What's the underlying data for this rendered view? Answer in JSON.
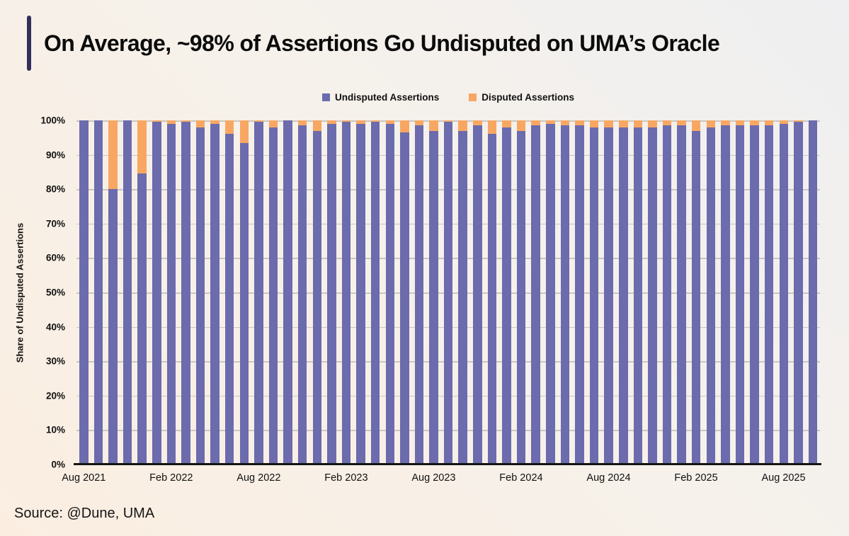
{
  "header": {
    "title": "On Average, ~98% of Assertions Go Undisputed on UMA’s Oracle"
  },
  "colors": {
    "accent_bar": "#322e5c",
    "undisputed": "#6b6bad",
    "disputed": "#f8a763",
    "gridline": "#cac7c2",
    "axis_line": "#141414",
    "background_top_right": "#efeff1",
    "background_bottom_left": "#fbeee1"
  },
  "legend": [
    {
      "label": "Undisputed Assertions",
      "color": "#6b6bad"
    },
    {
      "label": "Disputed Assertions",
      "color": "#f8a763"
    }
  ],
  "source": {
    "label": "Source: @Dune, UMA"
  },
  "chart_data": {
    "type": "bar",
    "stacked": true,
    "title": "On Average, ~98% of Assertions Go Undisputed on UMA’s Oracle",
    "xlabel": "",
    "ylabel": "Share of Undisputed Assertions",
    "ylim": [
      0,
      100
    ],
    "grid": true,
    "legend_position": "top-center",
    "yticks": [
      "0%",
      "10%",
      "20%",
      "30%",
      "40%",
      "50%",
      "60%",
      "70%",
      "80%",
      "90%",
      "100%"
    ],
    "xticks": [
      "Aug 2021",
      "Feb 2022",
      "Aug 2022",
      "Feb 2023",
      "Aug 2023",
      "Feb 2024",
      "Aug 2024",
      "Feb 2025",
      "Aug 2025"
    ],
    "xtick_every": 6,
    "categories": [
      "Aug 2021",
      "Sep 2021",
      "Oct 2021",
      "Nov 2021",
      "Dec 2021",
      "Jan 2022",
      "Feb 2022",
      "Mar 2022",
      "Apr 2022",
      "May 2022",
      "Jun 2022",
      "Jul 2022",
      "Aug 2022",
      "Sep 2022",
      "Oct 2022",
      "Nov 2022",
      "Dec 2022",
      "Jan 2023",
      "Feb 2023",
      "Mar 2023",
      "Apr 2023",
      "May 2023",
      "Jun 2023",
      "Jul 2023",
      "Aug 2023",
      "Sep 2023",
      "Oct 2023",
      "Nov 2023",
      "Dec 2023",
      "Jan 2024",
      "Feb 2024",
      "Mar 2024",
      "Apr 2024",
      "May 2024",
      "Jun 2024",
      "Jul 2024",
      "Aug 2024",
      "Sep 2024",
      "Oct 2024",
      "Nov 2024",
      "Dec 2024",
      "Jan 2025",
      "Feb 2025",
      "Mar 2025",
      "Apr 2025",
      "May 2025",
      "Jun 2025",
      "Jul 2025",
      "Aug 2025",
      "Sep 2025",
      "Oct 2025"
    ],
    "series": [
      {
        "name": "Undisputed Assertions",
        "color": "#6b6bad",
        "values": [
          100,
          100,
          80,
          100,
          84.5,
          99.5,
          99,
          99.5,
          98,
          99,
          96,
          93.5,
          99.5,
          98,
          100,
          98.5,
          97,
          99,
          99.5,
          99,
          99.5,
          99,
          96.5,
          98.5,
          97,
          99.5,
          97,
          98.5,
          96,
          98,
          97,
          98.5,
          99,
          98.5,
          98.5,
          98,
          98,
          98,
          98,
          98,
          98.5,
          98.5,
          97,
          98,
          98.5,
          98.5,
          98.5,
          98.5,
          99,
          99.5,
          100
        ]
      },
      {
        "name": "Disputed Assertions",
        "color": "#f8a763",
        "values": [
          0,
          0,
          20,
          0,
          15.5,
          0.5,
          1,
          0.5,
          2,
          1,
          4,
          6.5,
          0.5,
          2,
          0,
          1.5,
          3,
          1,
          0.5,
          1,
          0.5,
          1,
          3.5,
          1.5,
          3,
          0.5,
          3,
          1.5,
          4,
          2,
          3,
          1.5,
          1,
          1.5,
          1.5,
          2,
          2,
          2,
          2,
          2,
          1.5,
          1.5,
          3,
          2,
          1.5,
          1.5,
          1.5,
          1.5,
          1,
          0.5,
          0
        ]
      }
    ]
  }
}
